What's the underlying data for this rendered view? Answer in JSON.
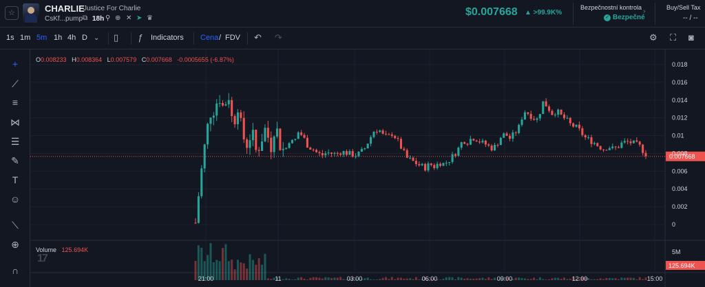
{
  "header": {
    "star_icon": "star-icon",
    "token_symbol": "CHARLIE",
    "token_name": "Justice For Charlie",
    "token_address": "CsKf...pump",
    "token_age": "18h",
    "price": "$0.007668",
    "price_change": "▲ >99.9K%",
    "safety": {
      "title": "Bezpečnostní kontrola",
      "status": "Bezpečné"
    },
    "tax": {
      "title": "Buy/Sell Tax",
      "value": "-- / --"
    },
    "colors": {
      "up": "#26a69a",
      "down": "#ef5350",
      "accent": "#2962ff"
    }
  },
  "toolbar": {
    "timeframes": [
      "1s",
      "1m",
      "5m",
      "1h",
      "4h",
      "D"
    ],
    "active_timeframe": "5m",
    "indicators_label": "Indicators",
    "price_mode": "Cena",
    "fdv_mode": "FDV"
  },
  "drawing_tools": [
    "crosshair-icon",
    "trend-line-icon",
    "horizontal-lines-icon",
    "pattern-icon",
    "fib-icon",
    "brush-icon",
    "text-icon",
    "emoji-icon",
    "ruler-icon",
    "zoom-in-icon",
    "magnet-icon"
  ],
  "ohlc_legend": {
    "o_label": "O",
    "o_value": "0.008233",
    "h_label": "H",
    "h_value": "0.008364",
    "l_label": "L",
    "l_value": "0.007579",
    "c_label": "C",
    "c_value": "0.007668",
    "change": "-0.0005655 (-6.87%)"
  },
  "volume_legend": {
    "label": "Volume",
    "value": "125.694K"
  },
  "chart_data": {
    "type": "candlestick",
    "x_tick_labels": [
      "21:00",
      "11",
      "03:00",
      "06:00",
      "09:00",
      "12:00",
      "15:00"
    ],
    "y_tick_labels": [
      "0.018",
      "0.016",
      "0.014",
      "0.012",
      "0.01",
      "0.008",
      "0.006",
      "0.004",
      "0.002",
      "0"
    ],
    "ylim": [
      0,
      0.018
    ],
    "last_price_label": "0.007668",
    "last_price": 0.007668,
    "volume_axis_label": "5M",
    "volume_last_label": "125.694K",
    "grid": true,
    "price_path": [
      [
        0,
        0.0002
      ],
      [
        1,
        0.005
      ],
      [
        2,
        0.009
      ],
      [
        3,
        0.0125
      ],
      [
        4,
        0.013
      ],
      [
        5,
        0.0145
      ],
      [
        6,
        0.013
      ],
      [
        7,
        0.0148
      ],
      [
        8,
        0.011
      ],
      [
        9,
        0.0135
      ],
      [
        10,
        0.01
      ],
      [
        11,
        0.009
      ],
      [
        12,
        0.0105
      ],
      [
        13,
        0.008
      ],
      [
        14,
        0.0095
      ],
      [
        15,
        0.011
      ],
      [
        16,
        0.0085
      ],
      [
        17,
        0.0115
      ],
      [
        18,
        0.009
      ],
      [
        19,
        0.0082
      ],
      [
        20,
        0.0095
      ],
      [
        21,
        0.0092
      ],
      [
        22,
        0.0105
      ],
      [
        23,
        0.0098
      ],
      [
        24,
        0.0088
      ],
      [
        25,
        0.0085
      ],
      [
        26,
        0.008
      ],
      [
        27,
        0.0078
      ],
      [
        28,
        0.0081
      ],
      [
        29,
        0.008
      ],
      [
        30,
        0.0079
      ],
      [
        31,
        0.0082
      ],
      [
        32,
        0.0081
      ],
      [
        33,
        0.0079
      ],
      [
        34,
        0.0078
      ],
      [
        35,
        0.008
      ],
      [
        36,
        0.0085
      ],
      [
        37,
        0.0095
      ],
      [
        38,
        0.0105
      ],
      [
        39,
        0.0108
      ],
      [
        40,
        0.01
      ],
      [
        41,
        0.0098
      ],
      [
        42,
        0.0103
      ],
      [
        43,
        0.0095
      ],
      [
        44,
        0.0085
      ],
      [
        45,
        0.0075
      ],
      [
        46,
        0.0072
      ],
      [
        47,
        0.0069
      ],
      [
        48,
        0.0066
      ],
      [
        49,
        0.0064
      ],
      [
        50,
        0.0068
      ],
      [
        51,
        0.0065
      ],
      [
        52,
        0.007
      ],
      [
        53,
        0.0068
      ],
      [
        54,
        0.0072
      ],
      [
        55,
        0.0078
      ],
      [
        56,
        0.0085
      ],
      [
        57,
        0.0095
      ],
      [
        58,
        0.0093
      ],
      [
        59,
        0.0098
      ],
      [
        60,
        0.0096
      ],
      [
        61,
        0.0092
      ],
      [
        62,
        0.009
      ],
      [
        63,
        0.0086
      ],
      [
        64,
        0.0088
      ],
      [
        65,
        0.0098
      ],
      [
        66,
        0.0102
      ],
      [
        67,
        0.0097
      ],
      [
        68,
        0.0102
      ],
      [
        69,
        0.011
      ],
      [
        70,
        0.0128
      ],
      [
        71,
        0.0125
      ],
      [
        72,
        0.012
      ],
      [
        73,
        0.0118
      ],
      [
        74,
        0.0138
      ],
      [
        75,
        0.0133
      ],
      [
        76,
        0.0125
      ],
      [
        77,
        0.0128
      ],
      [
        78,
        0.0122
      ],
      [
        79,
        0.0118
      ],
      [
        80,
        0.0112
      ],
      [
        81,
        0.011
      ],
      [
        82,
        0.0105
      ],
      [
        83,
        0.0098
      ],
      [
        84,
        0.0095
      ],
      [
        85,
        0.0092
      ],
      [
        86,
        0.0088
      ],
      [
        87,
        0.0085
      ],
      [
        88,
        0.0088
      ],
      [
        89,
        0.0085
      ],
      [
        90,
        0.0087
      ],
      [
        91,
        0.0092
      ],
      [
        92,
        0.0093
      ],
      [
        93,
        0.0092
      ],
      [
        94,
        0.009
      ],
      [
        95,
        0.0087
      ],
      [
        96,
        0.0077
      ]
    ]
  }
}
